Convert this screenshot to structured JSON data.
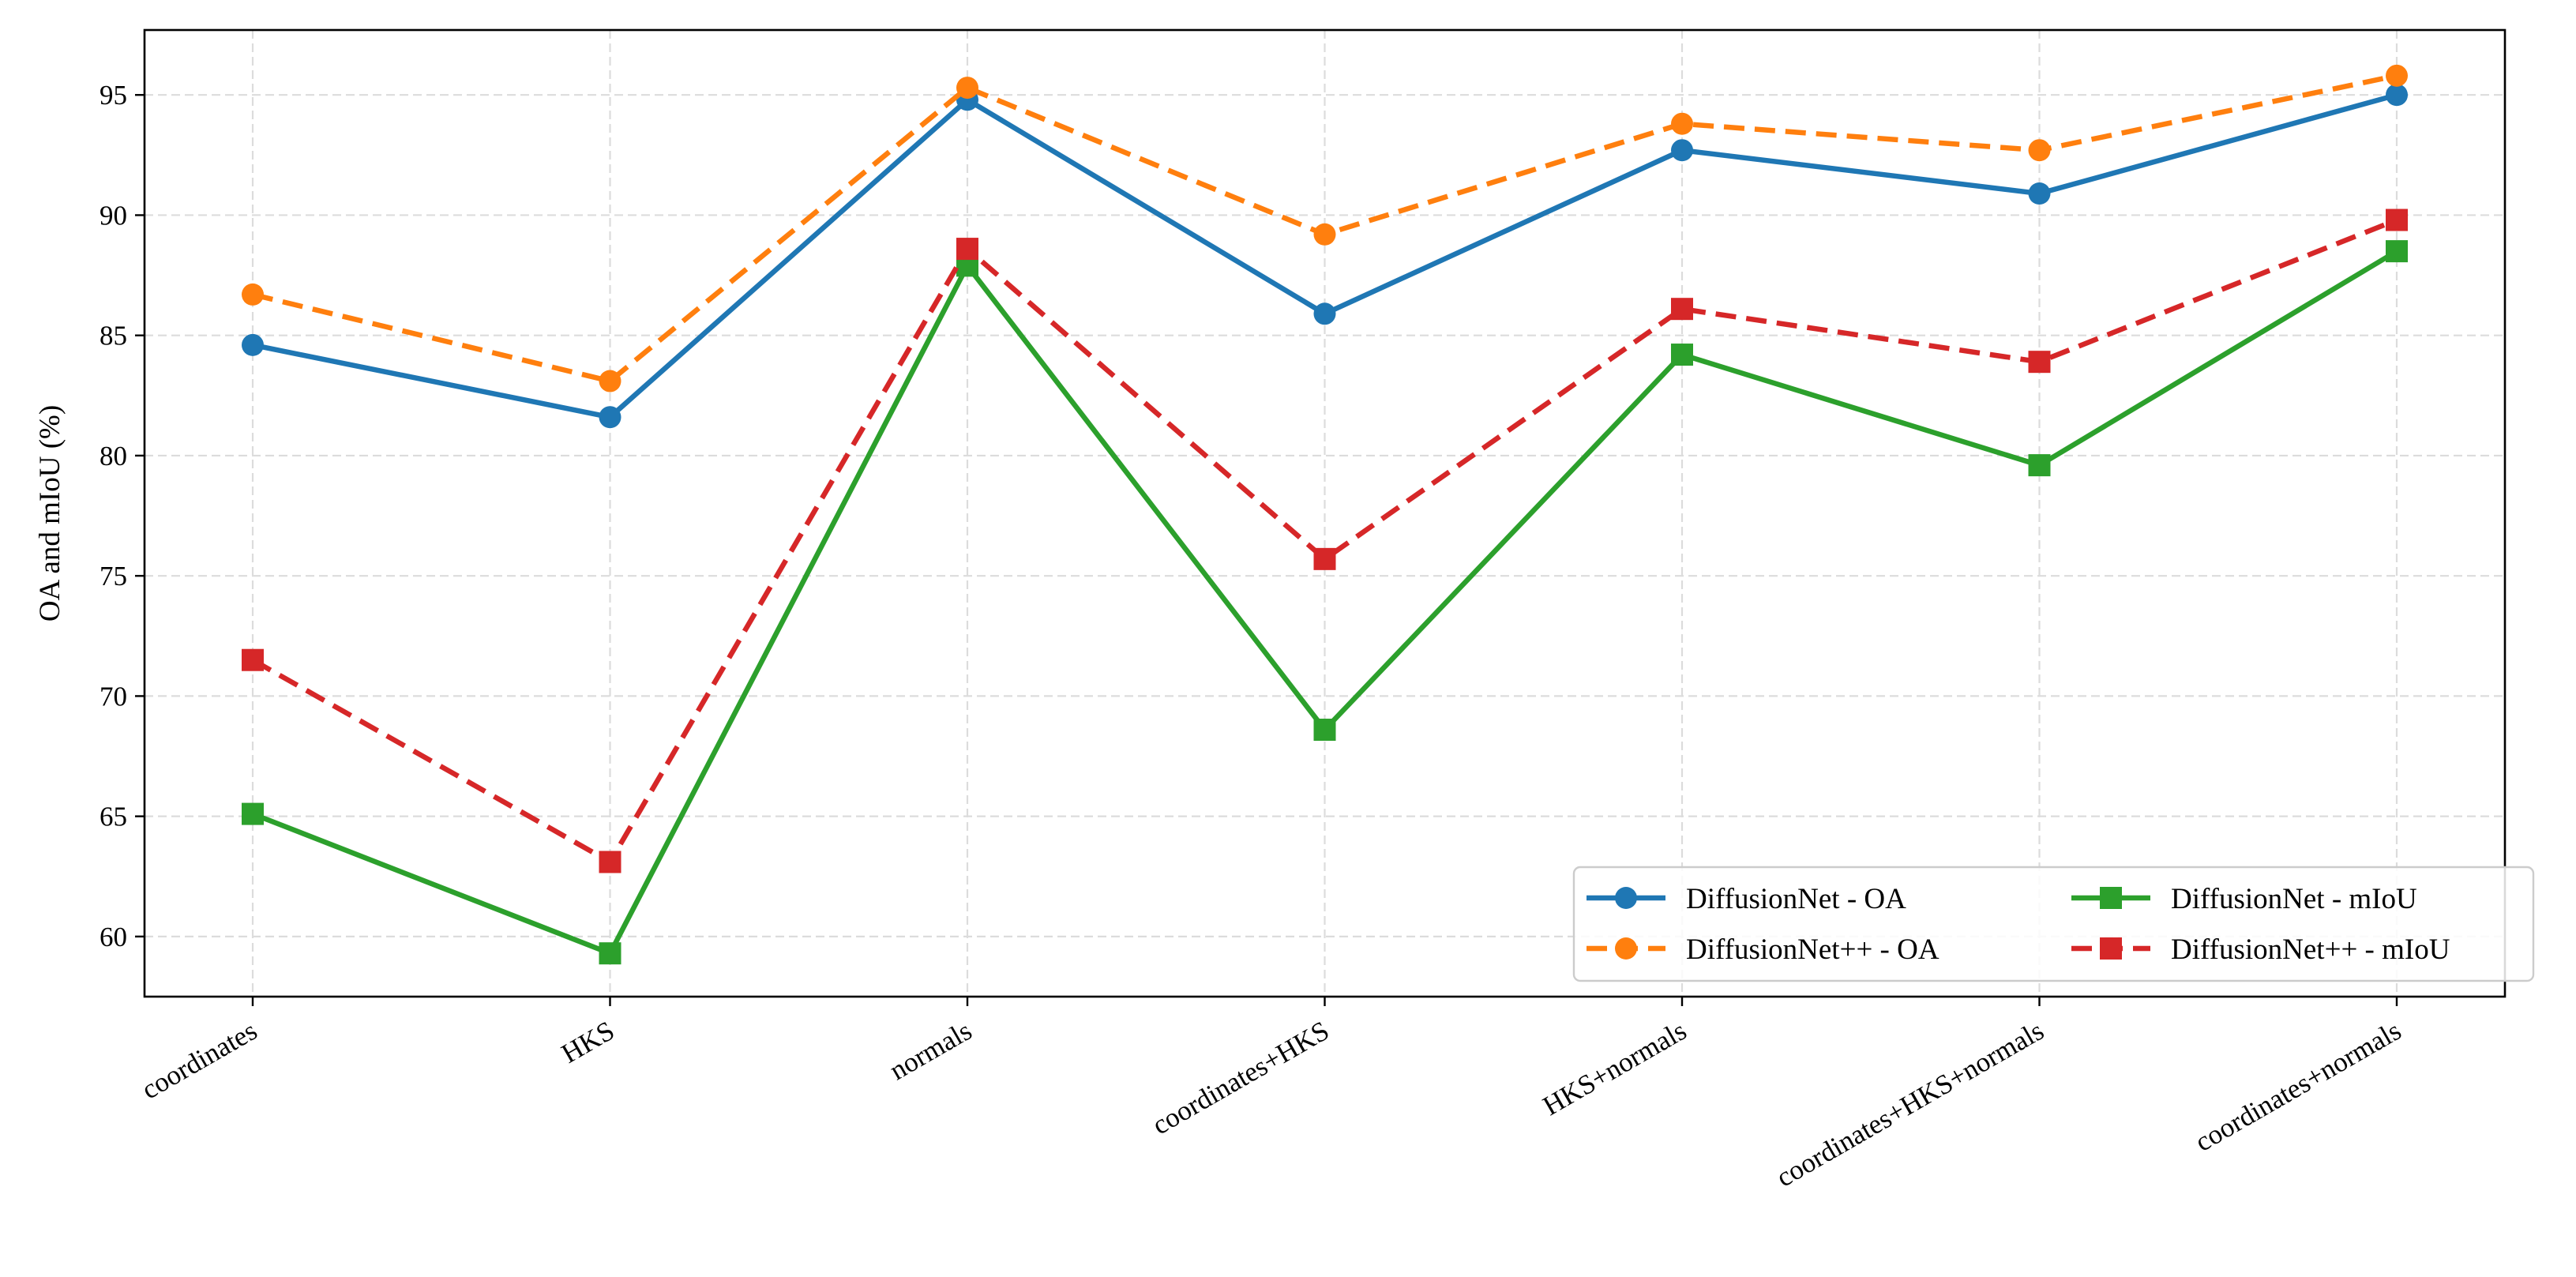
{
  "chart_data": {
    "type": "line",
    "title": "",
    "xlabel": "",
    "ylabel": "OA and mIoU (%)",
    "categories": [
      "coordinates",
      "HKS",
      "normals",
      "coordinates+HKS",
      "HKS+normals",
      "coordinates+HKS+normals",
      "coordinates+normals"
    ],
    "yticks": [
      60,
      65,
      70,
      75,
      80,
      85,
      90,
      95
    ],
    "ylim": [
      57.5,
      97.7
    ],
    "grid": true,
    "legend_position": "lower-right",
    "legend_columns": 2,
    "series": [
      {
        "name": "DiffusionNet - OA",
        "color": "#1f77b4",
        "linestyle": "solid",
        "marker": "circle",
        "values": [
          84.6,
          81.6,
          94.8,
          85.9,
          92.7,
          90.9,
          95.0
        ]
      },
      {
        "name": "DiffusionNet++ - OA",
        "color": "#ff7f0e",
        "linestyle": "dashed",
        "marker": "circle",
        "values": [
          86.7,
          83.1,
          95.3,
          89.2,
          93.8,
          92.7,
          95.8
        ]
      },
      {
        "name": "DiffusionNet - mIoU",
        "color": "#2ca02c",
        "linestyle": "solid",
        "marker": "square",
        "values": [
          65.1,
          59.3,
          87.9,
          68.6,
          84.2,
          79.6,
          88.5
        ]
      },
      {
        "name": "DiffusionNet++ - mIoU",
        "color": "#d62728",
        "linestyle": "dashed",
        "marker": "square",
        "values": [
          71.5,
          63.1,
          88.6,
          75.7,
          86.1,
          83.9,
          89.8
        ]
      }
    ]
  }
}
